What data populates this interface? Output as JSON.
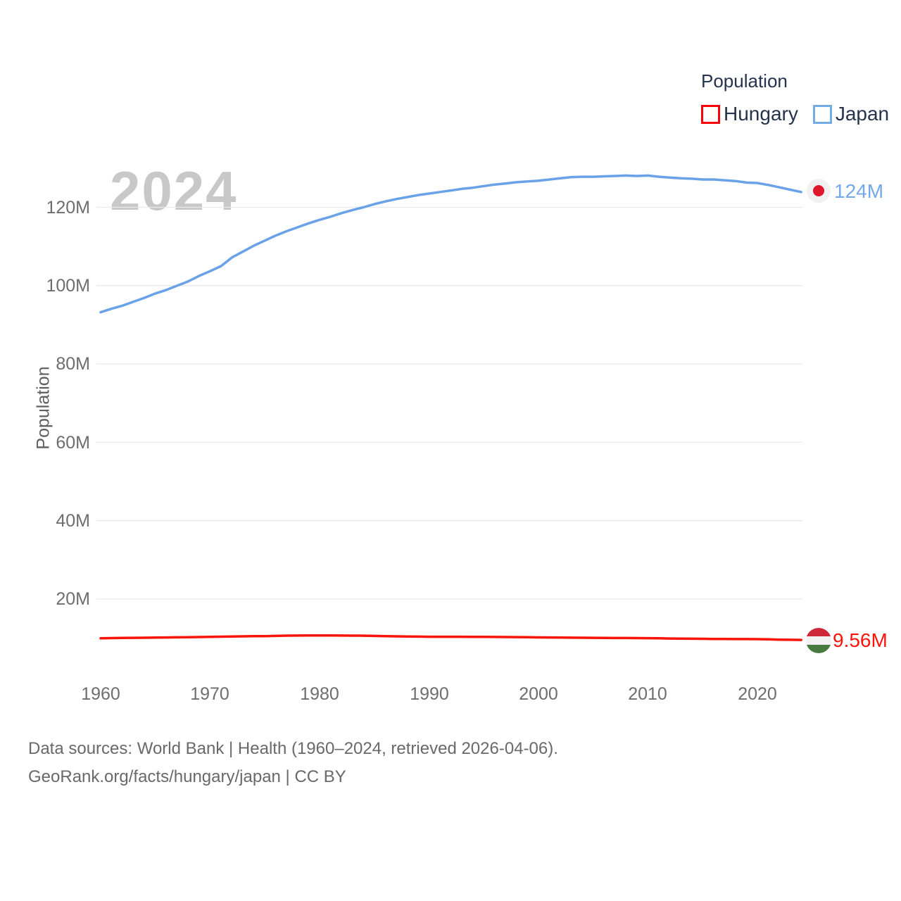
{
  "watermark_year": "2024",
  "legend": {
    "title": "Population",
    "items": [
      {
        "label": "Hungary",
        "swatch_color": "#fb0007"
      },
      {
        "label": "Japan",
        "swatch_color": "#74ade4"
      }
    ]
  },
  "axis": {
    "y_title": "Population",
    "y_ticks": [
      "120M",
      "100M",
      "80M",
      "60M",
      "40M",
      "20M"
    ],
    "x_ticks": [
      "1960",
      "1970",
      "1980",
      "1990",
      "2000",
      "2010",
      "2020"
    ]
  },
  "end_labels": {
    "japan": "124M",
    "hungary": "9.56M"
  },
  "footer": {
    "line1": "Data sources: World Bank | Health (1960–2024, retrieved 2026-04-06).",
    "line2": "GeoRank.org/facts/hungary/japan | CC BY"
  },
  "colors": {
    "japan_line": "#6aa2e8",
    "hungary_line": "#f8150a",
    "grid": "#eaeaea",
    "tick_text": "#6e6e6e",
    "legend_text": "#26334d",
    "watermark": "#c8c8c8",
    "japan_label": "#74a9e8",
    "hungary_label": "#f8150a"
  },
  "chart_data": {
    "type": "line",
    "title": "Population",
    "xlabel": "",
    "ylabel": "Population",
    "unit": "millions of people",
    "x_range": [
      1960,
      2024
    ],
    "ylim": [
      0,
      130
    ],
    "grid": "horizontal-only",
    "legend_position": "top-right",
    "y_tick_values": [
      120,
      100,
      80,
      60,
      40,
      20
    ],
    "x_tick_values": [
      1960,
      1970,
      1980,
      1990,
      2000,
      2010,
      2020
    ],
    "x": [
      1960,
      1961,
      1962,
      1963,
      1964,
      1965,
      1966,
      1967,
      1968,
      1969,
      1970,
      1971,
      1972,
      1973,
      1974,
      1975,
      1976,
      1977,
      1978,
      1979,
      1980,
      1981,
      1982,
      1983,
      1984,
      1985,
      1986,
      1987,
      1988,
      1989,
      1990,
      1991,
      1992,
      1993,
      1994,
      1995,
      1996,
      1997,
      1998,
      1999,
      2000,
      2001,
      2002,
      2003,
      2004,
      2005,
      2006,
      2007,
      2008,
      2009,
      2010,
      2011,
      2012,
      2013,
      2014,
      2015,
      2016,
      2017,
      2018,
      2019,
      2020,
      2021,
      2022,
      2023,
      2024
    ],
    "series": [
      {
        "name": "Japan",
        "end_value_label": "124M",
        "values": [
          93.2,
          94.1,
          94.9,
          95.9,
          96.9,
          98.0,
          98.9,
          100.0,
          101.1,
          102.5,
          103.7,
          105.0,
          107.2,
          108.7,
          110.2,
          111.5,
          112.8,
          113.9,
          114.9,
          115.9,
          116.8,
          117.6,
          118.5,
          119.3,
          120.0,
          120.8,
          121.5,
          122.1,
          122.6,
          123.1,
          123.5,
          123.9,
          124.3,
          124.7,
          125.0,
          125.4,
          125.8,
          126.1,
          126.4,
          126.6,
          126.8,
          127.1,
          127.4,
          127.7,
          127.8,
          127.8,
          127.9,
          128.0,
          128.1,
          128.0,
          128.1,
          127.8,
          127.6,
          127.4,
          127.3,
          127.1,
          127.1,
          126.9,
          126.7,
          126.3,
          126.2,
          125.7,
          125.1,
          124.5,
          123.9
        ]
      },
      {
        "name": "Hungary",
        "end_value_label": "9.56M",
        "values": [
          9.98,
          10.03,
          10.06,
          10.09,
          10.12,
          10.15,
          10.18,
          10.22,
          10.26,
          10.3,
          10.34,
          10.39,
          10.43,
          10.47,
          10.52,
          10.53,
          10.59,
          10.65,
          10.67,
          10.69,
          10.71,
          10.71,
          10.68,
          10.66,
          10.64,
          10.58,
          10.53,
          10.48,
          10.44,
          10.4,
          10.37,
          10.37,
          10.37,
          10.36,
          10.35,
          10.33,
          10.31,
          10.29,
          10.27,
          10.24,
          10.21,
          10.19,
          10.16,
          10.13,
          10.11,
          10.09,
          10.07,
          10.05,
          10.04,
          10.02,
          10.0,
          9.97,
          9.92,
          9.89,
          9.87,
          9.84,
          9.81,
          9.79,
          9.78,
          9.77,
          9.75,
          9.71,
          9.64,
          9.6,
          9.56
        ]
      }
    ]
  }
}
